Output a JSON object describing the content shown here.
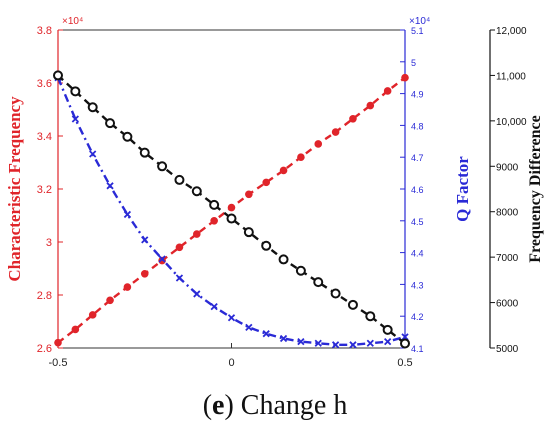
{
  "caption": {
    "bold": "e",
    "text": "Change h"
  },
  "chart_data": {
    "type": "line",
    "x_ticks": [
      -0.5,
      0,
      0.5
    ],
    "xlim": [
      -0.5,
      0.5
    ],
    "axes": [
      {
        "id": "freq",
        "label": "Characteristic Frequency",
        "color": "#e0242a",
        "ylim": [
          2.6,
          3.8
        ],
        "ticks": [
          2.6,
          2.8,
          3,
          3.2,
          3.4,
          3.6,
          3.8
        ],
        "multiplier": "×10⁴"
      },
      {
        "id": "q",
        "label": "Q Factor",
        "color": "#2a2ad6",
        "ylim": [
          4.1,
          5.1
        ],
        "ticks": [
          4.1,
          4.2,
          4.3,
          4.4,
          4.5,
          4.6,
          4.7,
          4.8,
          4.9,
          5,
          5.1
        ],
        "multiplier": "×10⁴"
      },
      {
        "id": "diff",
        "label": "Frequency Difference",
        "color": "#111111",
        "ylim": [
          5000,
          12000
        ],
        "ticks": [
          5000,
          6000,
          7000,
          8000,
          9000,
          10000,
          11000,
          12000
        ],
        "tick_labels": [
          "5000",
          "6000",
          "7000",
          "8000",
          "9000",
          "10,000",
          "11,000",
          "12,000"
        ]
      }
    ],
    "series": [
      {
        "axis": "freq",
        "marker": "dot",
        "line": "dashed",
        "color": "#e0242a",
        "x": [
          -0.5,
          -0.45,
          -0.4,
          -0.35,
          -0.3,
          -0.25,
          -0.2,
          -0.15,
          -0.1,
          -0.05,
          0,
          0.05,
          0.1,
          0.15,
          0.2,
          0.25,
          0.3,
          0.35,
          0.4,
          0.45,
          0.5
        ],
        "y": [
          2.62,
          2.67,
          2.725,
          2.78,
          2.83,
          2.88,
          2.93,
          2.98,
          3.03,
          3.08,
          3.13,
          3.18,
          3.225,
          3.27,
          3.32,
          3.37,
          3.415,
          3.465,
          3.515,
          3.57,
          3.62
        ]
      },
      {
        "axis": "q",
        "marker": "x",
        "line": "dashdot",
        "color": "#2a2ad6",
        "x": [
          -0.5,
          -0.45,
          -0.4,
          -0.35,
          -0.3,
          -0.25,
          -0.2,
          -0.15,
          -0.1,
          -0.05,
          0,
          0.05,
          0.1,
          0.15,
          0.2,
          0.25,
          0.3,
          0.35,
          0.4,
          0.45,
          0.5
        ],
        "y": [
          4.95,
          4.82,
          4.71,
          4.61,
          4.52,
          4.44,
          4.38,
          4.32,
          4.27,
          4.23,
          4.195,
          4.165,
          4.145,
          4.13,
          4.12,
          4.115,
          4.11,
          4.11,
          4.115,
          4.12,
          4.135
        ]
      },
      {
        "axis": "diff",
        "marker": "circle",
        "line": "dashed",
        "color": "#111111",
        "x": [
          -0.5,
          -0.45,
          -0.4,
          -0.35,
          -0.3,
          -0.25,
          -0.2,
          -0.15,
          -0.1,
          -0.05,
          0,
          0.05,
          0.1,
          0.15,
          0.2,
          0.25,
          0.3,
          0.35,
          0.4,
          0.45,
          0.5
        ],
        "y": [
          11000,
          10650,
          10300,
          9950,
          9650,
          9300,
          9000,
          8700,
          8450,
          8150,
          7850,
          7550,
          7250,
          6950,
          6700,
          6450,
          6200,
          5950,
          5700,
          5400,
          5100
        ]
      }
    ]
  }
}
